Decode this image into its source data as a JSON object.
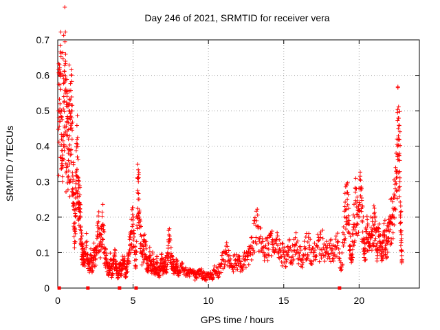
{
  "chart_data": {
    "type": "scatter",
    "title": "Day 246 of 2021, SRMTID for receiver vera",
    "xlabel": "GPS time / hours",
    "ylabel": "SRMTID / TECUs",
    "xlim": [
      0,
      24
    ],
    "ylim": [
      0,
      0.7
    ],
    "xticks": [
      0,
      5,
      10,
      15,
      20
    ],
    "xtick_labels": [
      "0",
      "5",
      "10",
      "15",
      "20"
    ],
    "yticks": [
      0,
      0.1,
      0.2,
      0.3,
      0.4,
      0.5,
      0.6,
      0.7
    ],
    "ytick_labels": [
      "0",
      "0.1",
      "0.2",
      "0.3",
      "0.4",
      "0.5",
      "0.6",
      "0.7"
    ],
    "grid": true,
    "marker": "+",
    "color": "#ff0000",
    "series": [
      {
        "name": "SRMTID",
        "points": [
          [
            0.05,
            0.5
          ],
          [
            0.1,
            0.47
          ],
          [
            0.15,
            0.52
          ],
          [
            0.2,
            0.56
          ],
          [
            0.25,
            0.42
          ],
          [
            0.3,
            0.36
          ],
          [
            0.35,
            0.6
          ],
          [
            0.4,
            0.54
          ],
          [
            0.45,
            0.61
          ],
          [
            0.5,
            0.55
          ],
          [
            0.55,
            0.4
          ],
          [
            0.6,
            0.47
          ],
          [
            0.65,
            0.43
          ],
          [
            0.7,
            0.38
          ],
          [
            0.75,
            0.5
          ],
          [
            0.8,
            0.35
          ],
          [
            0.85,
            0.45
          ],
          [
            0.9,
            0.5
          ],
          [
            0.95,
            0.42
          ],
          [
            1.0,
            0.3
          ],
          [
            1.05,
            0.24
          ],
          [
            1.1,
            0.17
          ],
          [
            1.15,
            0.16
          ],
          [
            1.2,
            0.27
          ],
          [
            1.25,
            0.33
          ],
          [
            1.3,
            0.37
          ],
          [
            1.35,
            0.31
          ],
          [
            1.4,
            0.22
          ],
          [
            1.45,
            0.24
          ],
          [
            1.5,
            0.2
          ],
          [
            1.55,
            0.13
          ],
          [
            1.6,
            0.11
          ],
          [
            1.65,
            0.09
          ],
          [
            1.7,
            0.1
          ],
          [
            1.8,
            0.08
          ],
          [
            1.9,
            0.12
          ],
          [
            2.0,
            0.07
          ],
          [
            2.1,
            0.06
          ],
          [
            2.2,
            0.09
          ],
          [
            2.3,
            0.05
          ],
          [
            2.4,
            0.1
          ],
          [
            2.5,
            0.08
          ],
          [
            2.6,
            0.14
          ],
          [
            2.7,
            0.17
          ],
          [
            2.8,
            0.12
          ],
          [
            2.9,
            0.15
          ],
          [
            3.0,
            0.18
          ],
          [
            3.1,
            0.1
          ],
          [
            3.2,
            0.08
          ],
          [
            3.3,
            0.06
          ],
          [
            3.4,
            0.05
          ],
          [
            3.5,
            0.08
          ],
          [
            3.6,
            0.04
          ],
          [
            3.7,
            0.07
          ],
          [
            3.8,
            0.09
          ],
          [
            3.9,
            0.05
          ],
          [
            4.0,
            0.03
          ],
          [
            4.1,
            0.06
          ],
          [
            4.2,
            0.05
          ],
          [
            4.3,
            0.08
          ],
          [
            4.4,
            0.07
          ],
          [
            4.5,
            0.04
          ],
          [
            4.6,
            0.06
          ],
          [
            4.7,
            0.09
          ],
          [
            4.8,
            0.12
          ],
          [
            4.9,
            0.16
          ],
          [
            5.0,
            0.18
          ],
          [
            5.1,
            0.1
          ],
          [
            5.2,
            0.08
          ],
          [
            5.3,
            0.27
          ],
          [
            5.35,
            0.3
          ],
          [
            5.4,
            0.2
          ],
          [
            5.5,
            0.15
          ],
          [
            5.6,
            0.09
          ],
          [
            5.7,
            0.11
          ],
          [
            5.8,
            0.13
          ],
          [
            5.9,
            0.07
          ],
          [
            6.0,
            0.06
          ],
          [
            6.1,
            0.09
          ],
          [
            6.2,
            0.05
          ],
          [
            6.3,
            0.08
          ],
          [
            6.4,
            0.06
          ],
          [
            6.5,
            0.05
          ],
          [
            6.6,
            0.07
          ],
          [
            6.7,
            0.04
          ],
          [
            6.8,
            0.06
          ],
          [
            6.9,
            0.08
          ],
          [
            7.0,
            0.05
          ],
          [
            7.1,
            0.07
          ],
          [
            7.2,
            0.06
          ],
          [
            7.3,
            0.1
          ],
          [
            7.4,
            0.13
          ],
          [
            7.5,
            0.09
          ],
          [
            7.6,
            0.07
          ],
          [
            7.7,
            0.06
          ],
          [
            7.8,
            0.05
          ],
          [
            7.9,
            0.07
          ],
          [
            8.0,
            0.04
          ],
          [
            8.2,
            0.06
          ],
          [
            8.4,
            0.05
          ],
          [
            8.6,
            0.04
          ],
          [
            8.8,
            0.05
          ],
          [
            9.0,
            0.04
          ],
          [
            9.2,
            0.03
          ],
          [
            9.4,
            0.05
          ],
          [
            9.6,
            0.04
          ],
          [
            9.8,
            0.03
          ],
          [
            10.0,
            0.04
          ],
          [
            10.2,
            0.03
          ],
          [
            10.4,
            0.05
          ],
          [
            10.6,
            0.04
          ],
          [
            10.8,
            0.06
          ],
          [
            11.0,
            0.08
          ],
          [
            11.2,
            0.1
          ],
          [
            11.4,
            0.07
          ],
          [
            11.6,
            0.06
          ],
          [
            11.8,
            0.08
          ],
          [
            12.0,
            0.07
          ],
          [
            12.2,
            0.06
          ],
          [
            12.4,
            0.08
          ],
          [
            12.6,
            0.09
          ],
          [
            12.8,
            0.1
          ],
          [
            13.0,
            0.13
          ],
          [
            13.2,
            0.19
          ],
          [
            13.4,
            0.14
          ],
          [
            13.6,
            0.1
          ],
          [
            13.8,
            0.12
          ],
          [
            14.0,
            0.11
          ],
          [
            14.2,
            0.13
          ],
          [
            14.4,
            0.1
          ],
          [
            14.6,
            0.12
          ],
          [
            14.8,
            0.09
          ],
          [
            15.0,
            0.1
          ],
          [
            15.2,
            0.08
          ],
          [
            15.4,
            0.11
          ],
          [
            15.6,
            0.09
          ],
          [
            15.8,
            0.12
          ],
          [
            16.0,
            0.1
          ],
          [
            16.2,
            0.08
          ],
          [
            16.4,
            0.11
          ],
          [
            16.6,
            0.13
          ],
          [
            16.8,
            0.1
          ],
          [
            17.0,
            0.09
          ],
          [
            17.2,
            0.12
          ],
          [
            17.4,
            0.11
          ],
          [
            17.6,
            0.14
          ],
          [
            17.8,
            0.1
          ],
          [
            18.0,
            0.09
          ],
          [
            18.2,
            0.12
          ],
          [
            18.4,
            0.11
          ],
          [
            18.6,
            0.13
          ],
          [
            18.8,
            0.05
          ],
          [
            19.0,
            0.15
          ],
          [
            19.1,
            0.22
          ],
          [
            19.2,
            0.27
          ],
          [
            19.3,
            0.18
          ],
          [
            19.4,
            0.12
          ],
          [
            19.5,
            0.08
          ],
          [
            19.6,
            0.15
          ],
          [
            19.7,
            0.2
          ],
          [
            19.8,
            0.24
          ],
          [
            19.9,
            0.18
          ],
          [
            20.0,
            0.22
          ],
          [
            20.1,
            0.26
          ],
          [
            20.2,
            0.19
          ],
          [
            20.3,
            0.14
          ],
          [
            20.4,
            0.11
          ],
          [
            20.5,
            0.16
          ],
          [
            20.6,
            0.13
          ],
          [
            20.7,
            0.12
          ],
          [
            20.8,
            0.17
          ],
          [
            20.9,
            0.15
          ],
          [
            21.0,
            0.18
          ],
          [
            21.1,
            0.14
          ],
          [
            21.2,
            0.11
          ],
          [
            21.3,
            0.16
          ],
          [
            21.4,
            0.12
          ],
          [
            21.5,
            0.09
          ],
          [
            21.6,
            0.13
          ],
          [
            21.7,
            0.15
          ],
          [
            21.8,
            0.11
          ],
          [
            21.9,
            0.14
          ],
          [
            22.0,
            0.16
          ],
          [
            22.1,
            0.2
          ],
          [
            22.2,
            0.18
          ],
          [
            22.3,
            0.22
          ],
          [
            22.4,
            0.28
          ],
          [
            22.5,
            0.33
          ],
          [
            22.55,
            0.4
          ],
          [
            22.6,
            0.45
          ],
          [
            22.65,
            0.42
          ],
          [
            22.7,
            0.36
          ],
          [
            22.75,
            0.2
          ],
          [
            22.8,
            0.15
          ],
          [
            22.85,
            0.08
          ]
        ]
      }
    ],
    "zero_markers_x": [
      0.1,
      2.0,
      4.1,
      5.2,
      18.7
    ]
  }
}
